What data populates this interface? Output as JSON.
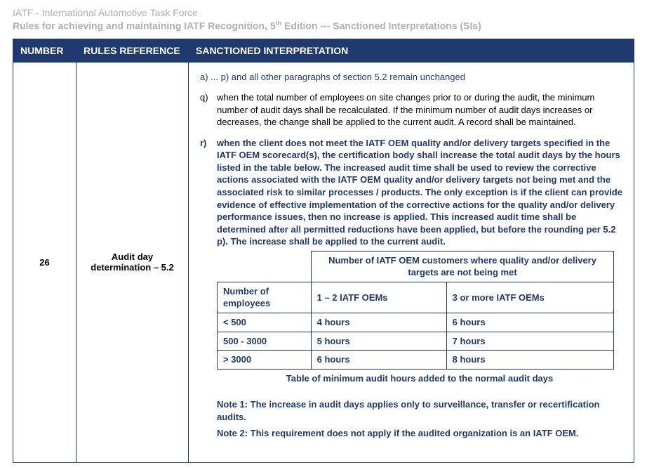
{
  "header": {
    "line1": "IATF - International Automotive Task Force",
    "line2_pre": "Rules for achieving and maintaining IATF Recognition, 5",
    "line2_sup": "th",
    "line2_post": " Edition --- Sanctioned Interpretations (SIs)"
  },
  "columns": {
    "number": "NUMBER",
    "reference": "RULES REFERENCE",
    "interpretation": "SANCTIONED INTERPRETATION"
  },
  "row": {
    "number": "26",
    "reference": "Audit day determination – 5.2",
    "interp": {
      "para_a": "a) ... p)  and all other paragraphs of section 5.2 remain unchanged",
      "q_label": "q)",
      "q_body": "when the total number of employees on site changes prior to or during the audit, the minimum number of audit days shall be recalculated.  If the minimum number of audit days increases or decreases, the change shall be applied to the current audit.  A record shall be maintained.",
      "r_label": "r)",
      "r_body": "when the client does not meet the IATF OEM quality and/or delivery targets specified in the IATF OEM scorecard(s), the certification body shall increase the total audit days by the hours listed in the table below. The increased audit time shall be used to review the corrective actions associated with the IATF OEM quality and/or delivery targets not being met and the associated risk to similar processes / products. The only exception is if the client can provide evidence of effective implementation of the corrective actions for the quality and/or delivery performance issues, then no increase is applied.  This increased audit time shall be determined after all permitted reductions have been applied, but before the rounding per 5.2 p).  The increase shall be applied to the current audit.",
      "table": {
        "span_header": "Number of IATF OEM customers where quality and/or delivery targets are not being met",
        "row_head": "Number of employees",
        "col1": "1 – 2 IATF OEMs",
        "col2": "3 or more IATF OEMs",
        "r1c0": "< 500",
        "r1c1": "4 hours",
        "r1c2": "6 hours",
        "r2c0": "500 - 3000",
        "r2c1": "5 hours",
        "r2c2": "7 hours",
        "r3c0": "> 3000",
        "r3c1": "6 hours",
        "r3c2": "8 hours"
      },
      "caption": "Table of minimum audit hours added to the normal audit days",
      "note1": "Note 1:  The increase in audit days applies only to surveillance, transfer or recertification audits.",
      "note2": "Note 2: This requirement does not apply if the audited organization is an IATF OEM."
    }
  }
}
